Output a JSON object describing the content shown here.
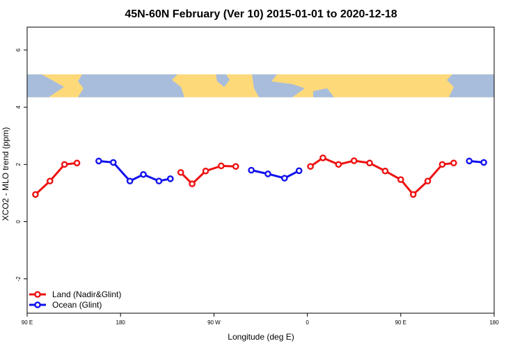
{
  "chart_data": {
    "type": "line",
    "title": "45N-60N February (Ver 10)   2015-01-01 to 2020-12-18",
    "xlabel": "Longitude (deg E)",
    "ylabel": "XCO2 - MLO trend (ppm)",
    "xlim": [
      90,
      540
    ],
    "ylim": [
      -3.2,
      6.8
    ],
    "x_ticks": [
      {
        "value": 90,
        "label": "90 E"
      },
      {
        "value": 180,
        "label": "180"
      },
      {
        "value": 270,
        "label": "90 W"
      },
      {
        "value": 360,
        "label": "0"
      },
      {
        "value": 450,
        "label": "90 E"
      },
      {
        "value": 540,
        "label": "180"
      }
    ],
    "y_ticks": [
      {
        "value": -2,
        "label": "-2"
      },
      {
        "value": 0,
        "label": "0"
      },
      {
        "value": 2,
        "label": "2"
      },
      {
        "value": 4,
        "label": "4"
      },
      {
        "value": 6,
        "label": "6"
      }
    ],
    "map_band": {
      "ymin": 4.35,
      "ymax": 5.15,
      "land_color": "#fdd97a",
      "ocean_color": "#a8bddc"
    },
    "legend_position": "bottom-left",
    "series": [
      {
        "name": "Land (Nadir&Glint)",
        "color": "#ee1111",
        "segments": [
          [
            [
              98,
              0.95
            ],
            [
              112,
              1.42
            ],
            [
              126,
              2.0
            ],
            [
              138,
              2.05
            ]
          ],
          [
            [
              238,
              1.72
            ],
            [
              249,
              1.32
            ],
            [
              262,
              1.77
            ],
            [
              277,
              1.95
            ],
            [
              291,
              1.93
            ]
          ],
          [
            [
              363,
              1.93
            ],
            [
              375,
              2.23
            ],
            [
              390,
              2.0
            ],
            [
              405,
              2.13
            ],
            [
              420,
              2.05
            ],
            [
              435,
              1.77
            ],
            [
              450,
              1.47
            ],
            [
              462,
              0.95
            ],
            [
              476,
              1.42
            ],
            [
              490,
              2.0
            ],
            [
              501,
              2.05
            ]
          ]
        ]
      },
      {
        "name": "Ocean (Glint)",
        "color": "#1111ee",
        "segments": [
          [
            [
              159,
              2.12
            ],
            [
              173,
              2.07
            ],
            [
              189,
              1.42
            ],
            [
              202,
              1.65
            ],
            [
              217,
              1.42
            ],
            [
              228,
              1.5
            ]
          ],
          [
            [
              306,
              1.8
            ],
            [
              322,
              1.67
            ],
            [
              338,
              1.52
            ],
            [
              352,
              1.78
            ]
          ],
          [
            [
              516,
              2.12
            ],
            [
              530,
              2.07
            ]
          ]
        ]
      }
    ]
  }
}
